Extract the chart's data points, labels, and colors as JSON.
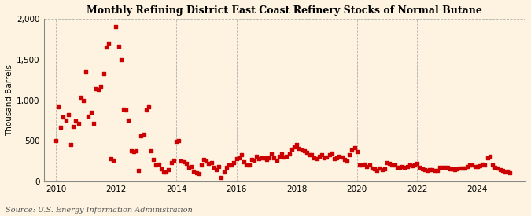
{
  "title": "Monthly Refining District East Coast Refinery Stocks of Normal Butane",
  "ylabel": "Thousand Barrels",
  "source": "Source: U.S. Energy Information Administration",
  "background_color": "#fdf3e0",
  "plot_bg_color": "#fdf3e0",
  "marker_color": "#cc0000",
  "marker_size": 5,
  "ylim": [
    0,
    2000
  ],
  "yticks": [
    0,
    500,
    1000,
    1500,
    2000
  ],
  "xlim_start": 2009.6,
  "xlim_end": 2025.6,
  "xticks": [
    2010,
    2012,
    2014,
    2016,
    2018,
    2020,
    2022,
    2024
  ],
  "data": {
    "dates": [
      2010.0,
      2010.083,
      2010.167,
      2010.25,
      2010.333,
      2010.417,
      2010.5,
      2010.583,
      2010.667,
      2010.75,
      2010.833,
      2010.917,
      2011.0,
      2011.083,
      2011.167,
      2011.25,
      2011.333,
      2011.417,
      2011.5,
      2011.583,
      2011.667,
      2011.75,
      2011.833,
      2011.917,
      2012.0,
      2012.083,
      2012.167,
      2012.25,
      2012.333,
      2012.417,
      2012.5,
      2012.583,
      2012.667,
      2012.75,
      2012.833,
      2012.917,
      2013.0,
      2013.083,
      2013.167,
      2013.25,
      2013.333,
      2013.417,
      2013.5,
      2013.583,
      2013.667,
      2013.75,
      2013.833,
      2013.917,
      2014.0,
      2014.083,
      2014.167,
      2014.25,
      2014.333,
      2014.417,
      2014.5,
      2014.583,
      2014.667,
      2014.75,
      2014.833,
      2014.917,
      2015.0,
      2015.083,
      2015.167,
      2015.25,
      2015.333,
      2015.417,
      2015.5,
      2015.583,
      2015.667,
      2015.75,
      2015.833,
      2015.917,
      2016.0,
      2016.083,
      2016.167,
      2016.25,
      2016.333,
      2016.417,
      2016.5,
      2016.583,
      2016.667,
      2016.75,
      2016.833,
      2016.917,
      2017.0,
      2017.083,
      2017.167,
      2017.25,
      2017.333,
      2017.417,
      2017.5,
      2017.583,
      2017.667,
      2017.75,
      2017.833,
      2017.917,
      2018.0,
      2018.083,
      2018.167,
      2018.25,
      2018.333,
      2018.417,
      2018.5,
      2018.583,
      2018.667,
      2018.75,
      2018.833,
      2018.917,
      2019.0,
      2019.083,
      2019.167,
      2019.25,
      2019.333,
      2019.417,
      2019.5,
      2019.583,
      2019.667,
      2019.75,
      2019.833,
      2019.917,
      2020.0,
      2020.083,
      2020.167,
      2020.25,
      2020.333,
      2020.417,
      2020.5,
      2020.583,
      2020.667,
      2020.75,
      2020.833,
      2020.917,
      2021.0,
      2021.083,
      2021.167,
      2021.25,
      2021.333,
      2021.417,
      2021.5,
      2021.583,
      2021.667,
      2021.75,
      2021.833,
      2021.917,
      2022.0,
      2022.083,
      2022.167,
      2022.25,
      2022.333,
      2022.417,
      2022.5,
      2022.583,
      2022.667,
      2022.75,
      2022.833,
      2022.917,
      2023.0,
      2023.083,
      2023.167,
      2023.25,
      2023.333,
      2023.417,
      2023.5,
      2023.583,
      2023.667,
      2023.75,
      2023.833,
      2023.917,
      2024.0,
      2024.083,
      2024.167,
      2024.25,
      2024.333,
      2024.417,
      2024.5,
      2024.583,
      2024.667,
      2024.75,
      2024.833,
      2024.917,
      2025.0,
      2025.083
    ],
    "values": [
      500,
      920,
      670,
      790,
      750,
      820,
      460,
      680,
      740,
      720,
      1030,
      1000,
      1350,
      800,
      850,
      720,
      1140,
      1130,
      1170,
      1320,
      1650,
      1700,
      280,
      260,
      1900,
      1660,
      1500,
      890,
      880,
      750,
      380,
      370,
      380,
      140,
      560,
      580,
      880,
      920,
      380,
      270,
      200,
      210,
      160,
      120,
      120,
      150,
      230,
      260,
      490,
      500,
      250,
      240,
      220,
      175,
      190,
      130,
      110,
      100,
      200,
      270,
      250,
      220,
      230,
      180,
      150,
      190,
      50,
      120,
      180,
      200,
      200,
      230,
      280,
      290,
      330,
      240,
      200,
      200,
      270,
      260,
      310,
      280,
      290,
      290,
      270,
      290,
      340,
      290,
      260,
      310,
      340,
      300,
      310,
      340,
      400,
      430,
      460,
      410,
      390,
      380,
      360,
      330,
      330,
      290,
      280,
      310,
      330,
      290,
      300,
      330,
      350,
      280,
      290,
      310,
      300,
      270,
      250,
      330,
      390,
      420,
      370,
      200,
      200,
      210,
      190,
      200,
      170,
      160,
      140,
      170,
      150,
      160,
      230,
      220,
      200,
      200,
      180,
      175,
      190,
      180,
      190,
      200,
      195,
      200,
      220,
      180,
      155,
      150,
      140,
      150,
      150,
      140,
      140,
      180,
      180,
      175,
      175,
      160,
      160,
      150,
      160,
      165,
      170,
      170,
      185,
      200,
      200,
      190,
      185,
      195,
      210,
      200,
      295,
      310,
      200,
      180,
      165,
      145,
      135,
      120,
      130,
      110
    ]
  }
}
